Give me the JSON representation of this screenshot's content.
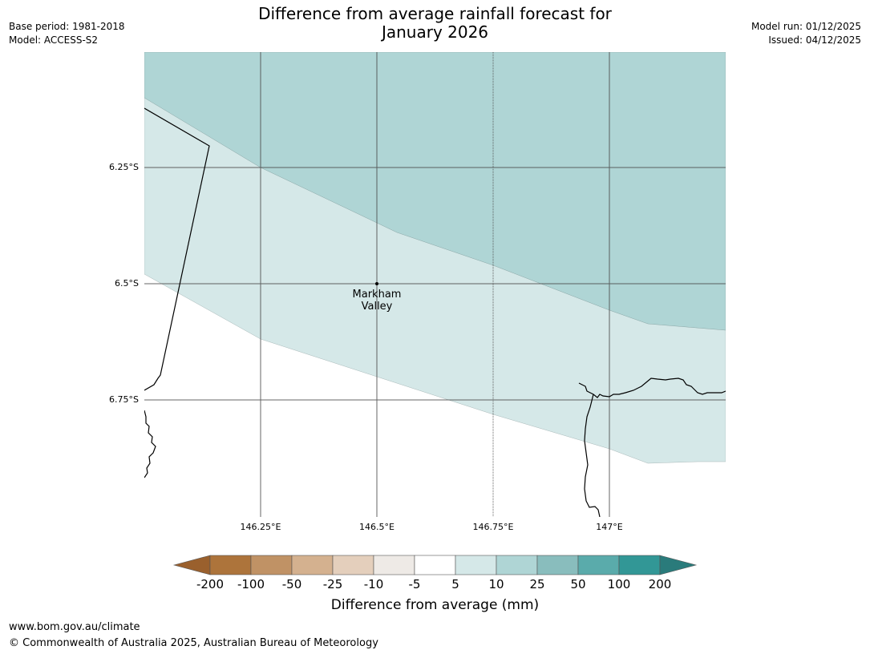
{
  "title_line1": "Difference from average rainfall forecast for",
  "title_line2": "January 2026",
  "meta_left": {
    "base_period": "Base period: 1981-2018",
    "model": "Model: ACCESS-S2"
  },
  "meta_right": {
    "model_run": "Model run: 01/12/2025",
    "issued": "Issued: 04/12/2025"
  },
  "latitude_ticks": [
    "6.25°S",
    "6.5°S",
    "6.75°S"
  ],
  "longitude_ticks": [
    "146.25°E",
    "146.5°E",
    "146.75°E",
    "147°E"
  ],
  "place": {
    "name_line1": "Markham",
    "name_line2": "Valley",
    "marker-icon": "dot-icon"
  },
  "map_colors": {
    "band_10_25": "#afd5d5",
    "band_5_10": "#d5e8e8",
    "background": "#ffffff",
    "coastline": "#000000",
    "gridline": "#4a4a4a"
  },
  "colorbar": {
    "labels": [
      "-200",
      "-100",
      "-50",
      "-25",
      "-10",
      "-5",
      "5",
      "10",
      "25",
      "50",
      "100",
      "200"
    ],
    "colors": [
      "#9a602d",
      "#ad743b",
      "#c09265",
      "#d4b18f",
      "#e4cfbc",
      "#eeeae6",
      "#ffffff",
      "#d5e8e8",
      "#afd5d5",
      "#89bdbd",
      "#5aabab",
      "#329796",
      "#2a7b7b"
    ],
    "title": "Difference from average (mm)"
  },
  "footer": {
    "url": "www.bom.gov.au/climate",
    "copyright": "© Commonwealth of Australia 2025, Australian Bureau of Meteorology"
  }
}
